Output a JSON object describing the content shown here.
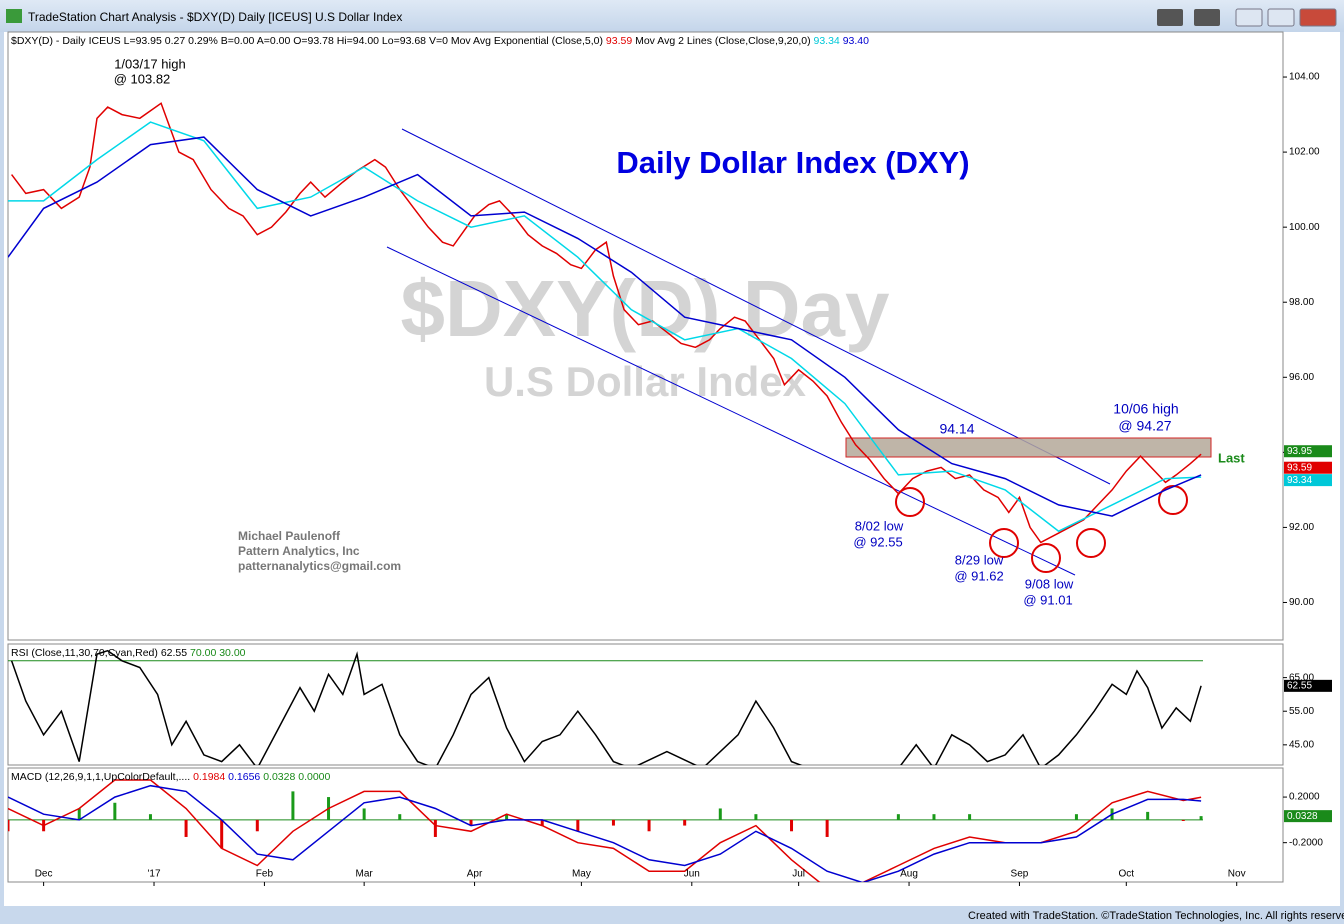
{
  "window": {
    "title": "TradeStation Chart Analysis - $DXY(D) Daily [ICEUS] U.S Dollar Index"
  },
  "footer": "Created with TradeStation. ©TradeStation Technologies, Inc. All rights reserved.",
  "chart_data": [
    {
      "type": "line",
      "info": [
        {
          "text": "$DXY(D) - Daily  ICEUS  L=93.95  0.27  0.29%  B=0.00  A=0.00  O=93.78  Hi=94.00  Lo=93.68  V=0  Mov Avg Exponential (Close,5,0)",
          "color": "#000"
        },
        {
          "text": "93.59",
          "color": "#e00000"
        },
        {
          "text": "Mov Avg 2 Lines (Close,Close,9,20,0)",
          "color": "#000"
        },
        {
          "text": "93.34",
          "color": "#00c8d8"
        },
        {
          "text": "93.40",
          "color": "#0000d0"
        }
      ],
      "watermark": [
        "$DXY(D) Day",
        "U.S Dollar Index"
      ],
      "annotations": [
        "1/03/17 high",
        "@ 103.82",
        "Daily Dollar Index (DXY)",
        "94.14",
        "10/06 high",
        "@ 94.27",
        "8/02 low",
        "@ 92.55",
        "8/29 low",
        "@ 91.62",
        "9/08 low",
        "@ 91.01",
        "Last",
        "Michael Paulenoff",
        "Pattern Analytics, Inc",
        "patternanalytics@gmail.com"
      ],
      "xlim": [
        -10,
        348
      ],
      "xticks": [
        {
          "value": 0,
          "label": "Dec"
        },
        {
          "value": 31,
          "label": "'17"
        },
        {
          "value": 62,
          "label": "Feb"
        },
        {
          "value": 90,
          "label": "Mar"
        },
        {
          "value": 121,
          "label": "Apr"
        },
        {
          "value": 151,
          "label": "May"
        },
        {
          "value": 182,
          "label": "Jun"
        },
        {
          "value": 212,
          "label": "Jul"
        },
        {
          "value": 243,
          "label": "Aug"
        },
        {
          "value": 274,
          "label": "Sep"
        },
        {
          "value": 304,
          "label": "Oct"
        },
        {
          "value": 335,
          "label": "Nov"
        }
      ],
      "ylim": [
        89,
        105.2
      ],
      "yticks": [
        {
          "value": 90,
          "label": "90.00"
        },
        {
          "value": 92,
          "label": "92.00"
        },
        {
          "value": 94,
          "label": "94.00"
        },
        {
          "value": 96,
          "label": "96.00"
        },
        {
          "value": 98,
          "label": "98.00"
        },
        {
          "value": 100,
          "label": "100.00"
        },
        {
          "value": 102,
          "label": "102.00"
        },
        {
          "value": 104,
          "label": "104.00"
        }
      ],
      "last_labels": [
        {
          "value": 93.95,
          "label": "93.95",
          "color": "#1a8a1a"
        },
        {
          "value": 93.59,
          "label": "93.59",
          "color": "#e00000"
        },
        {
          "value": 93.34,
          "label": "93.34",
          "color": "#00c8d8"
        }
      ],
      "series": [
        {
          "color": "#e00000",
          "x": [
            -9,
            -5,
            0,
            5,
            10,
            13,
            15,
            18,
            22,
            27,
            33,
            38,
            42,
            47,
            52,
            56,
            60,
            64,
            68,
            72,
            75,
            79,
            84,
            88,
            93,
            96,
            100,
            104,
            108,
            112,
            115,
            118,
            121,
            125,
            128,
            132,
            136,
            140,
            144,
            148,
            151,
            155,
            158,
            160,
            163,
            167,
            171,
            175,
            179,
            183,
            187,
            190,
            194,
            197,
            201,
            205,
            208,
            212,
            216,
            220,
            224,
            228,
            232,
            236,
            240,
            244,
            248,
            252,
            256,
            260,
            264,
            268,
            271,
            274,
            277,
            280,
            284,
            288,
            292,
            296,
            300,
            304,
            308,
            311,
            315,
            318,
            322,
            325
          ],
          "values": [
            101.4,
            100.9,
            101.0,
            100.5,
            100.8,
            101.6,
            102.9,
            103.2,
            103.0,
            102.9,
            103.3,
            102.0,
            101.8,
            101.0,
            100.5,
            100.3,
            99.8,
            100.0,
            100.4,
            100.9,
            101.2,
            100.8,
            101.2,
            101.5,
            101.8,
            101.6,
            101.0,
            100.5,
            100.0,
            99.6,
            99.5,
            99.9,
            100.3,
            100.6,
            100.7,
            100.3,
            99.8,
            99.5,
            99.3,
            99.0,
            98.9,
            99.4,
            99.6,
            98.7,
            97.8,
            97.4,
            97.5,
            97.2,
            96.9,
            96.8,
            97.0,
            97.3,
            97.6,
            97.5,
            97.0,
            96.5,
            95.8,
            96.2,
            95.9,
            95.5,
            94.8,
            94.2,
            93.8,
            93.3,
            92.9,
            93.3,
            93.5,
            93.6,
            93.3,
            93.4,
            93.0,
            92.8,
            92.4,
            92.8,
            92.0,
            91.6,
            91.8,
            92.0,
            92.2,
            92.6,
            93.0,
            93.5,
            93.9,
            93.6,
            93.2,
            93.4,
            93.7,
            93.95
          ]
        },
        {
          "color": "#00d8e8",
          "x": [
            -10,
            0,
            15,
            30,
            45,
            60,
            75,
            90,
            105,
            120,
            135,
            150,
            165,
            180,
            195,
            210,
            225,
            240,
            255,
            270,
            285,
            300,
            315,
            325
          ],
          "values": [
            100.7,
            100.7,
            101.8,
            102.8,
            102.3,
            100.5,
            100.8,
            101.6,
            100.7,
            100.0,
            100.3,
            99.2,
            97.8,
            97.0,
            97.3,
            96.5,
            95.3,
            93.4,
            93.5,
            93.0,
            91.9,
            92.6,
            93.3,
            93.34
          ]
        },
        {
          "color": "#0000d0",
          "x": [
            -10,
            0,
            15,
            30,
            45,
            60,
            75,
            90,
            105,
            120,
            135,
            150,
            165,
            180,
            195,
            210,
            225,
            240,
            255,
            270,
            285,
            300,
            315,
            325
          ],
          "values": [
            99.2,
            100.5,
            101.2,
            102.2,
            102.4,
            101.0,
            100.3,
            100.8,
            101.4,
            100.3,
            100.4,
            99.7,
            98.8,
            97.6,
            97.3,
            97.0,
            96.0,
            94.6,
            93.7,
            93.3,
            92.6,
            92.3,
            93.0,
            93.4
          ]
        }
      ]
    },
    {
      "type": "line",
      "info": [
        {
          "text": "RSI (Close,11,30,70,Cyan,Red)",
          "color": "#000"
        },
        {
          "text": "62.55",
          "color": "#000"
        },
        {
          "text": "70.00",
          "color": "#1a8a1a"
        },
        {
          "text": "30.00",
          "color": "#1a8a1a"
        }
      ],
      "ylim": [
        39,
        75
      ],
      "yticks": [
        {
          "value": 45,
          "label": "45.00"
        },
        {
          "value": 55,
          "label": "55.00"
        },
        {
          "value": 65,
          "label": "65.00"
        }
      ],
      "overbought": 70,
      "last_labels": [
        {
          "value": 62.55,
          "label": "62.55",
          "color": "#000"
        }
      ],
      "series": [
        {
          "color": "#000",
          "x": [
            -9,
            -5,
            0,
            5,
            10,
            15,
            18,
            22,
            27,
            32,
            36,
            40,
            45,
            50,
            55,
            60,
            66,
            72,
            76,
            80,
            84,
            88,
            90,
            95,
            100,
            105,
            110,
            115,
            120,
            125,
            130,
            135,
            140,
            145,
            150,
            155,
            160,
            165,
            175,
            185,
            195,
            200,
            205,
            210,
            215,
            225,
            240,
            245,
            250,
            255,
            260,
            265,
            270,
            275,
            280,
            285,
            290,
            295,
            300,
            304,
            307,
            310,
            314,
            318,
            322,
            325
          ],
          "values": [
            70,
            58,
            48,
            55,
            40,
            72,
            73,
            70,
            68,
            60,
            45,
            52,
            42,
            40,
            45,
            38,
            50,
            62,
            55,
            66,
            60,
            72,
            60,
            63,
            48,
            40,
            38,
            48,
            60,
            65,
            50,
            40,
            46,
            48,
            55,
            48,
            40,
            38,
            43,
            38,
            48,
            58,
            50,
            40,
            38,
            38,
            38,
            45,
            38,
            48,
            45,
            40,
            42,
            48,
            38,
            42,
            48,
            55,
            63,
            60,
            67,
            62,
            50,
            56,
            52,
            62.55
          ]
        }
      ]
    },
    {
      "type": "line",
      "info": [
        {
          "text": "MACD (12,26,9,1,1,UpColorDefault,....",
          "color": "#000"
        },
        {
          "text": "0.1984",
          "color": "#e00000"
        },
        {
          "text": "0.1656",
          "color": "#0000d0"
        },
        {
          "text": "0.0328",
          "color": "#1a8a1a"
        },
        {
          "text": "0.0000",
          "color": "#1a8a1a"
        }
      ],
      "ylim": [
        -0.545,
        0.455
      ],
      "yticks": [
        {
          "value": -0.2,
          "label": "-0.2000"
        },
        {
          "value": 0.2,
          "label": "0.2000"
        }
      ],
      "last_labels": [
        {
          "value": 0.0328,
          "label": "0.0328",
          "color": "#1a8a1a"
        }
      ],
      "x": [
        -10,
        0,
        10,
        20,
        30,
        40,
        50,
        60,
        70,
        80,
        90,
        100,
        110,
        120,
        130,
        140,
        150,
        160,
        170,
        180,
        190,
        200,
        210,
        220,
        230,
        240,
        250,
        260,
        270,
        280,
        290,
        300,
        310,
        320,
        325
      ],
      "histogram": [
        -0.1,
        -0.1,
        0.1,
        0.15,
        0.05,
        -0.15,
        -0.25,
        -0.1,
        0.25,
        0.2,
        0.1,
        0.05,
        -0.15,
        -0.05,
        0.05,
        -0.05,
        -0.1,
        -0.05,
        -0.1,
        -0.05,
        0.1,
        0.05,
        -0.1,
        -0.15,
        0,
        0.05,
        0.05,
        0.05,
        0,
        0,
        0.05,
        0.1,
        0.07,
        -0.01,
        0.0328
      ],
      "series": [
        {
          "color": "#e00000",
          "values": [
            0.1,
            -0.05,
            0.1,
            0.35,
            0.35,
            0.1,
            -0.25,
            -0.4,
            -0.1,
            0.1,
            0.25,
            0.25,
            -0.05,
            -0.1,
            0.05,
            -0.05,
            -0.2,
            -0.25,
            -0.45,
            -0.45,
            -0.2,
            -0.05,
            -0.35,
            -0.6,
            -0.55,
            -0.4,
            -0.25,
            -0.15,
            -0.2,
            -0.2,
            -0.1,
            0.15,
            0.25,
            0.17,
            0.1984
          ]
        },
        {
          "color": "#0000d0",
          "values": [
            0.2,
            0.05,
            0,
            0.2,
            0.3,
            0.25,
            0,
            -0.3,
            -0.35,
            -0.1,
            0.15,
            0.2,
            0.1,
            -0.05,
            0,
            0,
            -0.1,
            -0.2,
            -0.35,
            -0.4,
            -0.3,
            -0.1,
            -0.25,
            -0.45,
            -0.55,
            -0.45,
            -0.3,
            -0.2,
            -0.2,
            -0.2,
            -0.15,
            0.05,
            0.18,
            0.18,
            0.1656
          ]
        }
      ]
    }
  ]
}
